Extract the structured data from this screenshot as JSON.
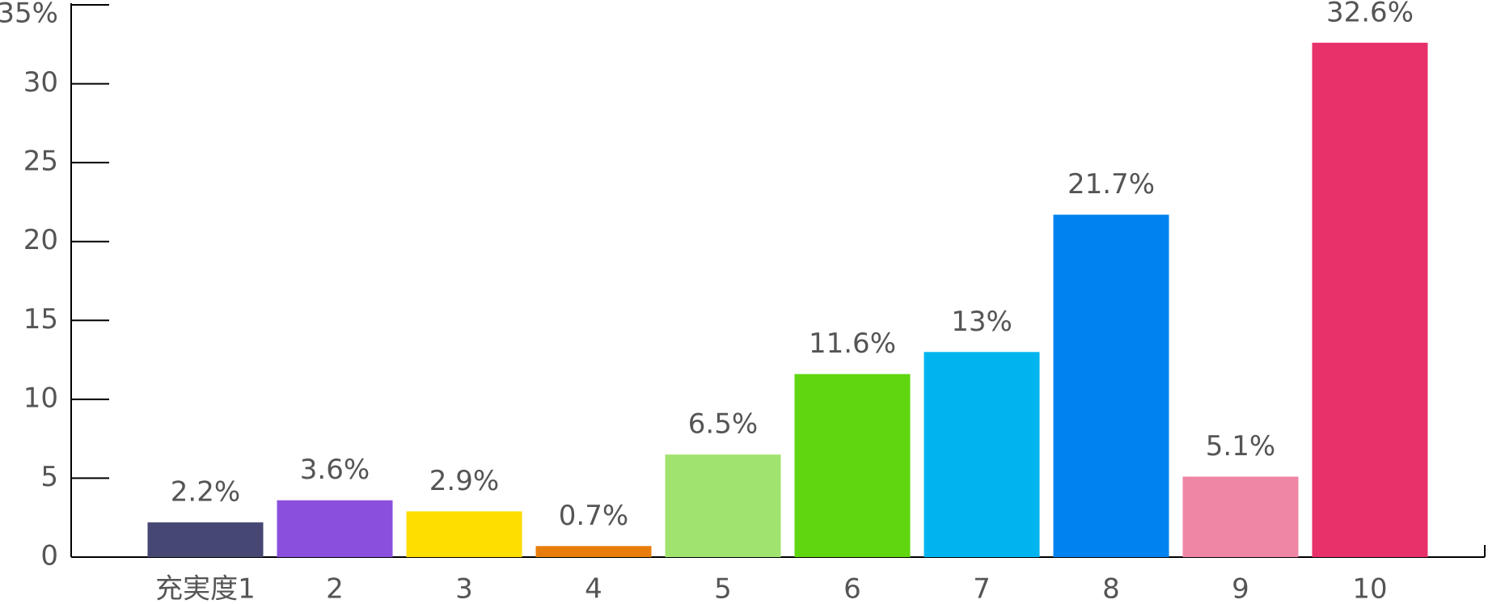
{
  "chart_data": {
    "type": "bar",
    "categories": [
      "充実度1",
      "2",
      "3",
      "4",
      "5",
      "6",
      "7",
      "8",
      "9",
      "10"
    ],
    "values": [
      2.2,
      3.6,
      2.9,
      0.7,
      6.5,
      11.6,
      13,
      21.7,
      5.1,
      32.6
    ],
    "value_labels": [
      "2.2%",
      "3.6%",
      "2.9%",
      "0.7%",
      "6.5%",
      "11.6%",
      "13%",
      "21.7%",
      "5.1%",
      "32.6%"
    ],
    "colors": [
      "#464873",
      "#8a4fdc",
      "#fedd00",
      "#e87d0c",
      "#a1e36f",
      "#5fd60f",
      "#00b4ef",
      "#0082ef",
      "#ef86a5",
      "#e8316a"
    ],
    "ylim": [
      0,
      35
    ],
    "yticks": [
      0,
      5,
      10,
      15,
      20,
      25,
      30,
      {
        "value": 35,
        "label": "35%"
      }
    ]
  }
}
